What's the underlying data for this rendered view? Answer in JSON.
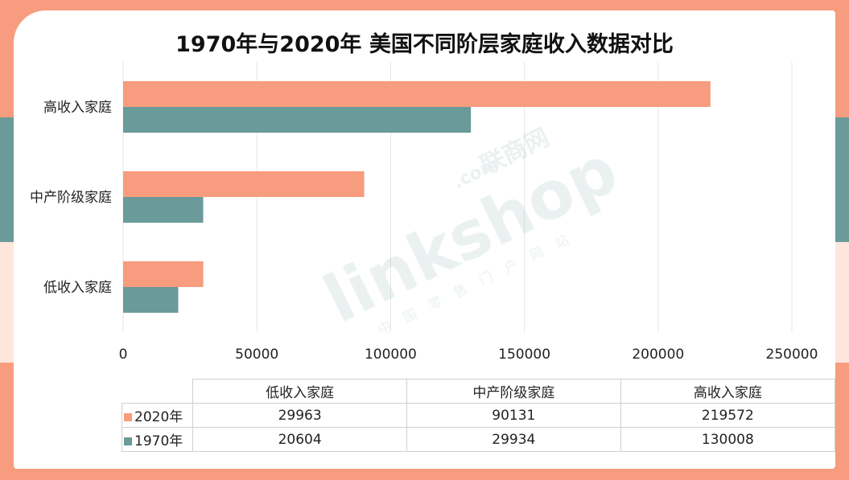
{
  "title": "1970年与2020年 美国不同阶层家庭收入数据对比",
  "colors": {
    "s2020": "#f79c7e",
    "s1970": "#6a9a9a",
    "grid": "#e5e5e5"
  },
  "watermark": {
    "brand": "linkshop",
    "com": ".com",
    "cn_name": "联商网",
    "sub": "中国零售门户网站"
  },
  "chart_data": {
    "type": "bar",
    "orientation": "horizontal",
    "title": "1970年与2020年 美国不同阶层家庭收入数据对比",
    "categories": [
      "高收入家庭",
      "中产阶级家庭",
      "低收入家庭"
    ],
    "series": [
      {
        "name": "2020年",
        "values": [
          219572,
          90131,
          29963
        ]
      },
      {
        "name": "1970年",
        "values": [
          130008,
          29934,
          20604
        ]
      }
    ],
    "xlim": [
      0,
      250000
    ],
    "xticks": [
      "0",
      "50000",
      "100000",
      "150000",
      "200000",
      "250000"
    ],
    "grid": true,
    "legend": "data-table-below"
  },
  "table": {
    "columns": [
      "低收入家庭",
      "中产阶级家庭",
      "高收入家庭"
    ],
    "rows": [
      {
        "label": "2020年",
        "values": [
          "29963",
          "90131",
          "219572"
        ]
      },
      {
        "label": "1970年",
        "values": [
          "20604",
          "29934",
          "130008"
        ]
      }
    ]
  }
}
